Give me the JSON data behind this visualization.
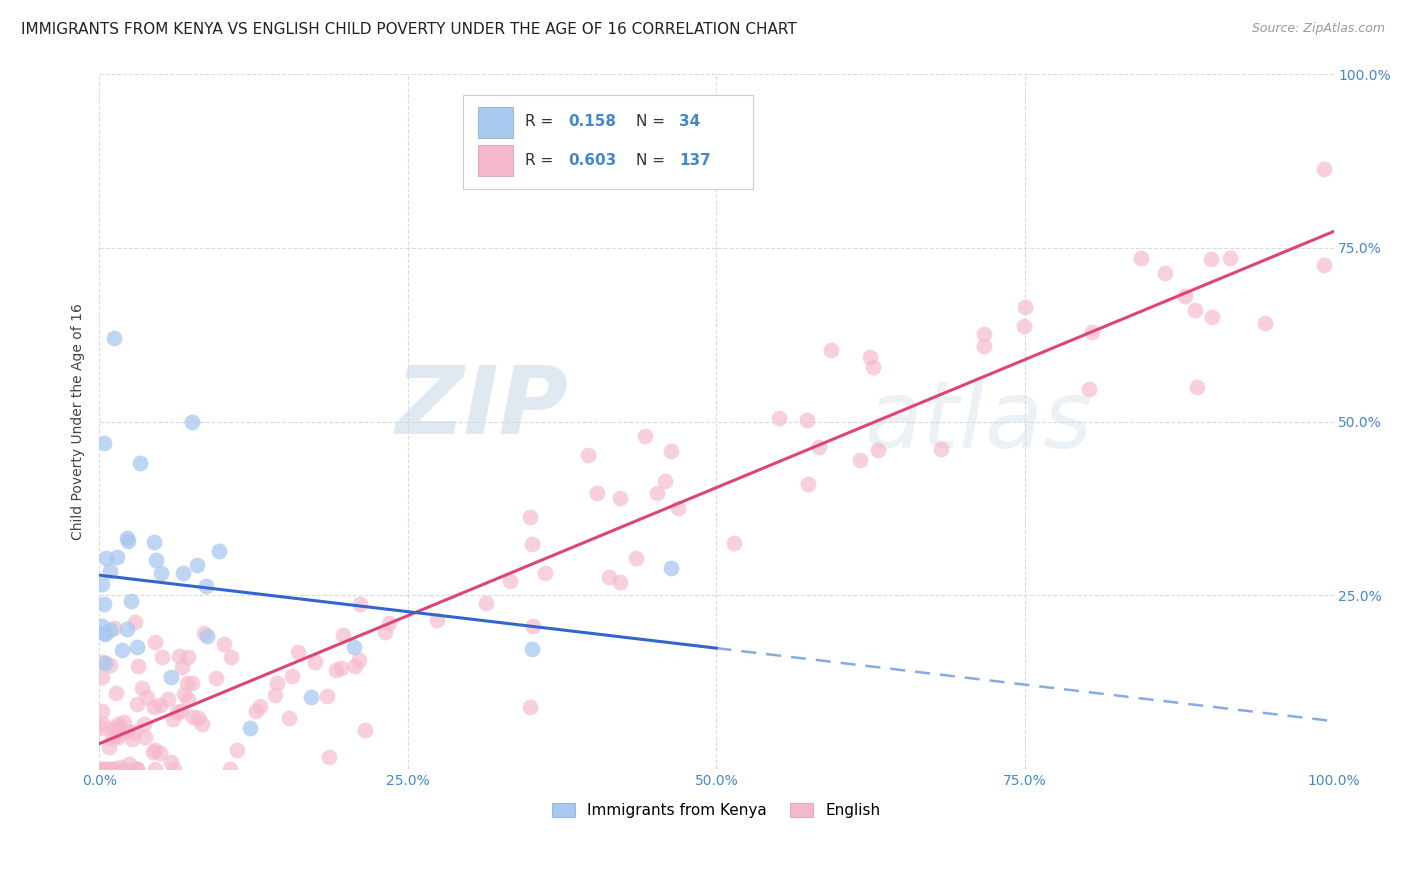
{
  "title": "IMMIGRANTS FROM KENYA VS ENGLISH CHILD POVERTY UNDER THE AGE OF 16 CORRELATION CHART",
  "source": "Source: ZipAtlas.com",
  "ylabel": "Child Poverty Under the Age of 16",
  "xlim": [
    0,
    1.0
  ],
  "ylim": [
    0,
    1.0
  ],
  "xticks": [
    0.0,
    0.25,
    0.5,
    0.75,
    1.0
  ],
  "yticks": [
    0.0,
    0.25,
    0.5,
    0.75,
    1.0
  ],
  "xticklabels": [
    "0.0%",
    "25.0%",
    "50.0%",
    "75.0%",
    "100.0%"
  ],
  "yticklabels": [
    "",
    "25.0%",
    "50.0%",
    "75.0%",
    "100.0%"
  ],
  "blue_R": "0.158",
  "blue_N": "34",
  "pink_R": "0.603",
  "pink_N": "137",
  "watermark_zip": "ZIP",
  "watermark_atlas": "atlas",
  "blue_color": "#a8c8f0",
  "pink_color": "#f5b8cc",
  "blue_line_color": "#3366cc",
  "blue_dash_color": "#88aadd",
  "pink_line_color": "#dd4477",
  "grid_color": "#cccccc",
  "background_color": "#ffffff",
  "title_fontsize": 11,
  "tick_color": "#4488cc",
  "legend_label_blue": "Immigrants from Kenya",
  "legend_label_pink": "English"
}
